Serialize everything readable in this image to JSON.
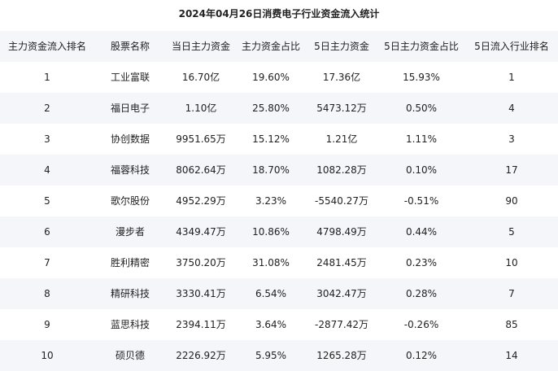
{
  "title": "2024年04月26日消费电子行业资金流入统计",
  "table": {
    "header": [
      "主力资金流入排名",
      "股票名称",
      "当日主力资金",
      "主力资金占比",
      "5日主力资金",
      "5日主力资金占比",
      "5日流入行业排名"
    ],
    "rows": [
      [
        "1",
        "工业富联",
        "16.70亿",
        "19.60%",
        "17.36亿",
        "15.93%",
        "1"
      ],
      [
        "2",
        "福日电子",
        "1.10亿",
        "25.80%",
        "5473.12万",
        "0.50%",
        "4"
      ],
      [
        "3",
        "协创数据",
        "9951.65万",
        "15.12%",
        "1.21亿",
        "1.11%",
        "3"
      ],
      [
        "4",
        "福蓉科技",
        "8062.64万",
        "18.70%",
        "1082.28万",
        "0.10%",
        "17"
      ],
      [
        "5",
        "歌尔股份",
        "4952.29万",
        "3.23%",
        "-5540.27万",
        "-0.51%",
        "90"
      ],
      [
        "6",
        "漫步者",
        "4349.47万",
        "10.86%",
        "4798.49万",
        "0.44%",
        "5"
      ],
      [
        "7",
        "胜利精密",
        "3750.20万",
        "31.08%",
        "2481.45万",
        "0.23%",
        "10"
      ],
      [
        "8",
        "精研科技",
        "3330.41万",
        "6.54%",
        "3042.47万",
        "0.28%",
        "7"
      ],
      [
        "9",
        "蓝思科技",
        "2394.11万",
        "3.64%",
        "-2877.42万",
        "-0.26%",
        "85"
      ],
      [
        "10",
        "硕贝德",
        "2226.92万",
        "5.95%",
        "1265.28万",
        "0.12%",
        "14"
      ]
    ]
  }
}
